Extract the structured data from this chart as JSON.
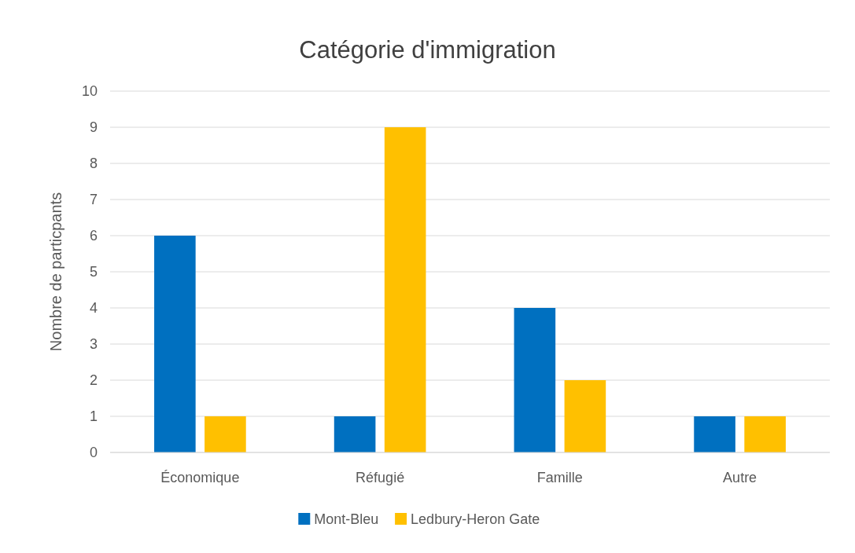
{
  "chart_data": {
    "type": "bar",
    "title": "Catégorie d'immigration",
    "ylabel": "Nombre de particpants",
    "categories": [
      "Économique",
      "Réfugié",
      "Famille",
      "Autre"
    ],
    "series": [
      {
        "name": "Mont-Bleu",
        "color": "#0070c0",
        "values": [
          6,
          1,
          4,
          1
        ]
      },
      {
        "name": "Ledbury-Heron Gate",
        "color": "#ffc000",
        "values": [
          1,
          9,
          2,
          1
        ]
      }
    ],
    "ylim": [
      0,
      10
    ],
    "yticks": [
      0,
      1,
      2,
      3,
      4,
      5,
      6,
      7,
      8,
      9,
      10
    ],
    "grid": "y",
    "legend": "bottom"
  }
}
